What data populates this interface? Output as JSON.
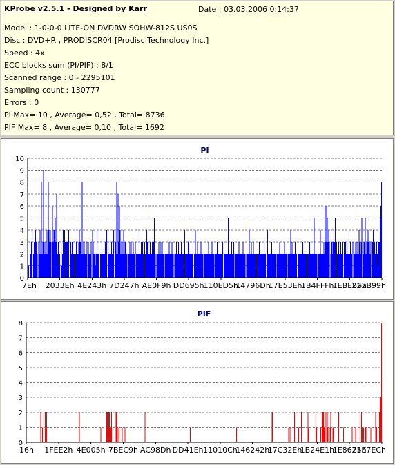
{
  "header": {
    "title": "KProbe v2.5.1 - Designed by Karr",
    "date": "Date : 03.03.2006 0:14:37"
  },
  "info_lines": [
    "Model : 1-0-0-0 LITE-ON DVDRW SOHW-812S  US0S",
    "Disc : DVD+R , PRODISCR04 [Prodisc Technology Inc.]",
    "Speed : 4x",
    "ECC blocks sum (PI/PIF) : 8/1",
    "Scanned range : 0 - 2295101",
    "Sampling count : 130777",
    "Errors : 0",
    "PI Max= 10 , Average= 0,52 , Total= 8736",
    "PIF Max= 8 , Average= 0,10 , Total= 1692"
  ],
  "chart_data": [
    {
      "type": "bar",
      "title": "PI",
      "color": "#0000ff",
      "ylim": [
        0,
        10
      ],
      "yticks": [
        0,
        1,
        2,
        3,
        4,
        5,
        6,
        7,
        8,
        9,
        10
      ],
      "xtick_labels": [
        "7Eh",
        "2033Eh",
        "4E243h",
        "7D247h",
        "AE0F9h",
        "DD695h",
        "110ED5h",
        "14796Dh",
        "17E53Eh",
        "1B4FFFh",
        "1EBE86h",
        "222B99h"
      ],
      "grid": true,
      "values": [
        0,
        1,
        0,
        3,
        2,
        3,
        4,
        0,
        2,
        3,
        3,
        4,
        3,
        3,
        2,
        0,
        3,
        2,
        4,
        2,
        8,
        2,
        3,
        9,
        3,
        2,
        3,
        2,
        4,
        2,
        8,
        4,
        3,
        4,
        3,
        0,
        6,
        3,
        4,
        4,
        5,
        3,
        7,
        3,
        2,
        3,
        1,
        2,
        0,
        3,
        1,
        2,
        4,
        3,
        4,
        3,
        0,
        3,
        3,
        3,
        4,
        0,
        2,
        3,
        2,
        3,
        3,
        2,
        2,
        0,
        2,
        3,
        4,
        2,
        2,
        3,
        4,
        3,
        3,
        2,
        8,
        2,
        3,
        3,
        2,
        2,
        2,
        3,
        0,
        3,
        2,
        2,
        2,
        3,
        0,
        4,
        3,
        2,
        2,
        1,
        2,
        2,
        4,
        2,
        2,
        2,
        0,
        2,
        2,
        3,
        2,
        2,
        3,
        2,
        3,
        2,
        4,
        0,
        3,
        2,
        2,
        3,
        2,
        3,
        2,
        3,
        4,
        0,
        4,
        3,
        2,
        8,
        2,
        7,
        3,
        6,
        4,
        2,
        3,
        3,
        2,
        4,
        2,
        3,
        3,
        2,
        2,
        0,
        2,
        2,
        3,
        2,
        3,
        2,
        2,
        3,
        2,
        2,
        0,
        3,
        2,
        2,
        2,
        2,
        4,
        2,
        2,
        3,
        2,
        3,
        2,
        0,
        3,
        2,
        2,
        4,
        3,
        3,
        2,
        2,
        3,
        2,
        2,
        3,
        2,
        3,
        5,
        2,
        2,
        0,
        2,
        2,
        2,
        3,
        2,
        2,
        3,
        2,
        3,
        2,
        2,
        0,
        2,
        2,
        2,
        2,
        2,
        2,
        3,
        2,
        2,
        2,
        3,
        2,
        2,
        0,
        2,
        3,
        2,
        3,
        2,
        2,
        3,
        2,
        2,
        2,
        3,
        2,
        2,
        2,
        0,
        4,
        2,
        2,
        2,
        2,
        3,
        3,
        2,
        2,
        2,
        2,
        2,
        3,
        0,
        2,
        2,
        4,
        2,
        2,
        3,
        2,
        2,
        2,
        2,
        3,
        2,
        2,
        2,
        0,
        2,
        2,
        2,
        2,
        2,
        2,
        3,
        2,
        2,
        2,
        2,
        3,
        2,
        2,
        2,
        0,
        2,
        2,
        2,
        3,
        2,
        2,
        2,
        2,
        2,
        2,
        2,
        3,
        0,
        2,
        2,
        2,
        2,
        2,
        2,
        5,
        2,
        2,
        2,
        2,
        3,
        2,
        2,
        3,
        2,
        0,
        2,
        2,
        2,
        2,
        2,
        3,
        2,
        2,
        2,
        2,
        2,
        3,
        2,
        2,
        2,
        0,
        2,
        2,
        2,
        2,
        4,
        2,
        2,
        3,
        2,
        2,
        2,
        3,
        2,
        2,
        0,
        2,
        2,
        2,
        2,
        3,
        2,
        2,
        2,
        2,
        2,
        2,
        3,
        2,
        2,
        0,
        2,
        4,
        2,
        2,
        2,
        2,
        2,
        3,
        2,
        2,
        2,
        2,
        2,
        2,
        0,
        2,
        2,
        2,
        2,
        3,
        2,
        2,
        2,
        2,
        2,
        2,
        3,
        2,
        2,
        2,
        0,
        2,
        2,
        2,
        2,
        4,
        2,
        3,
        2,
        2,
        2,
        2,
        3,
        2,
        2,
        0,
        2,
        2,
        2,
        2,
        2,
        2,
        2,
        3,
        2,
        2,
        2,
        2,
        2,
        0,
        2,
        2,
        2,
        3,
        2,
        2,
        2,
        2,
        2,
        2,
        5,
        2,
        2,
        2,
        2,
        0,
        2,
        2,
        2,
        4,
        2,
        2,
        2,
        2,
        3,
        2,
        6,
        3,
        6,
        5,
        3,
        4,
        3,
        0,
        2,
        3,
        3,
        2,
        3,
        4,
        3,
        5,
        0,
        3,
        2,
        2,
        3,
        2,
        2,
        3,
        2,
        3,
        2,
        0,
        3,
        2,
        3,
        2,
        3,
        2,
        2,
        4,
        2,
        3,
        2,
        2,
        3,
        0,
        3,
        2,
        2,
        3,
        2,
        3,
        2,
        2,
        4,
        3,
        2,
        3,
        5,
        0,
        2,
        3,
        3,
        5,
        2,
        3,
        3,
        4,
        3,
        3,
        2,
        3,
        0,
        3,
        3,
        4,
        2,
        3,
        2,
        3,
        3,
        2,
        1,
        3,
        3,
        5,
        6,
        8
      ]
    },
    {
      "type": "bar",
      "title": "PIF",
      "color": "#ff0000",
      "ylim": [
        0,
        8
      ],
      "yticks": [
        0,
        1,
        2,
        3,
        4,
        5,
        6,
        7,
        8
      ],
      "xtick_labels": [
        "16h",
        "1FEE2h",
        "4E005h",
        "7BEC9h",
        "AC98Dh",
        "DD41Eh",
        "11010Ch",
        "146242h",
        "17C32Eh",
        "1B24E1h",
        "1E8675h",
        "21E7ECh"
      ],
      "grid": true,
      "values": [
        0,
        0,
        0,
        0,
        0,
        0,
        0,
        0,
        0,
        0,
        0,
        0,
        0,
        0,
        0,
        0,
        0,
        0,
        0,
        0,
        2,
        0,
        1,
        0,
        2,
        0,
        2,
        1,
        2,
        0,
        0,
        0,
        0,
        0,
        0,
        0,
        0,
        0,
        0,
        0,
        0,
        0,
        0,
        0,
        0,
        0,
        0,
        0,
        0,
        0,
        0,
        0,
        0,
        0,
        0,
        0,
        0,
        0,
        0,
        0,
        0,
        0,
        0,
        0,
        0,
        0,
        0,
        0,
        0,
        0,
        0,
        0,
        0,
        0,
        2,
        0,
        0,
        0,
        0,
        0,
        0,
        0,
        0,
        0,
        0,
        0,
        0,
        0,
        0,
        0,
        0,
        0,
        0,
        0,
        0,
        0,
        0,
        0,
        0,
        0,
        0,
        0,
        0,
        0,
        1,
        0,
        0,
        0,
        0,
        0,
        0,
        0,
        2,
        2,
        1,
        2,
        2,
        0,
        1,
        2,
        0,
        1,
        0,
        0,
        0,
        2,
        2,
        1,
        0,
        1,
        0,
        0,
        0,
        0,
        1,
        0,
        0,
        0,
        1,
        0,
        0,
        0,
        0,
        0,
        0,
        0,
        0,
        0,
        0,
        0,
        0,
        0,
        0,
        0,
        0,
        0,
        0,
        0,
        0,
        0,
        0,
        0,
        0,
        0,
        0,
        0,
        2,
        0,
        0,
        0,
        0,
        0,
        0,
        0,
        0,
        0,
        0,
        0,
        0,
        0,
        0,
        0,
        0,
        0,
        0,
        0,
        0,
        0,
        0,
        0,
        0,
        0,
        0,
        0,
        0,
        0,
        0,
        0,
        0,
        0,
        0,
        0,
        0,
        0,
        0,
        0,
        0,
        0,
        0,
        0,
        0,
        0,
        0,
        0,
        0,
        0,
        0,
        0,
        0,
        0,
        0,
        0,
        0,
        0,
        0,
        0,
        0,
        0,
        0,
        1,
        0,
        0,
        0,
        0,
        0,
        0,
        0,
        0,
        0,
        0,
        0,
        0,
        0,
        0,
        0,
        0,
        0,
        0,
        0,
        0,
        0,
        0,
        0,
        0,
        0,
        0,
        0,
        0,
        0,
        0,
        0,
        0,
        0,
        0,
        0,
        0,
        0,
        0,
        0,
        0,
        0,
        0,
        0,
        0,
        0,
        0,
        0,
        0,
        0,
        0,
        0,
        0,
        0,
        0,
        0,
        0,
        0,
        0,
        0,
        0,
        0,
        0,
        0,
        0,
        1,
        0,
        0,
        0,
        0,
        0,
        0,
        0,
        0,
        0,
        0,
        0,
        0,
        0,
        0,
        0,
        0,
        0,
        0,
        0,
        0,
        0,
        0,
        0,
        0,
        0,
        0,
        0,
        0,
        0,
        0,
        0,
        0,
        0,
        0,
        0,
        0,
        0,
        0,
        0,
        0,
        0,
        0,
        0,
        0,
        0,
        0,
        0,
        0,
        0,
        2,
        0,
        0,
        0,
        0,
        0,
        0,
        0,
        0,
        0,
        0,
        0,
        0,
        0,
        0,
        0,
        0,
        0,
        0,
        0,
        0,
        0,
        0,
        1,
        0,
        1,
        0,
        0,
        0,
        0,
        0,
        2,
        0,
        0,
        0,
        0,
        0,
        1,
        0,
        0,
        0,
        2,
        0,
        0,
        0,
        0,
        0,
        0,
        0,
        0,
        2,
        1,
        0,
        0,
        0,
        0,
        0,
        0,
        0,
        0,
        0,
        2,
        1,
        0,
        0,
        0,
        0,
        0,
        1,
        0,
        2,
        2,
        2,
        1,
        0,
        2,
        0,
        2,
        1,
        0,
        0,
        1,
        2,
        0,
        0,
        1,
        1,
        0,
        0,
        0,
        0,
        0,
        0,
        2,
        0,
        0,
        0,
        0,
        0,
        0,
        1,
        0,
        0,
        0,
        0,
        0,
        0,
        0,
        0,
        0,
        0,
        0,
        1,
        0,
        0,
        0,
        0,
        1,
        0,
        0,
        0,
        0,
        0,
        2,
        0,
        2,
        1,
        0,
        1,
        0,
        0,
        1,
        1,
        0,
        0,
        0,
        0,
        0,
        1,
        0,
        0,
        0,
        0,
        0,
        0,
        2,
        1,
        0,
        0,
        0,
        2,
        3,
        3,
        8
      ]
    }
  ]
}
